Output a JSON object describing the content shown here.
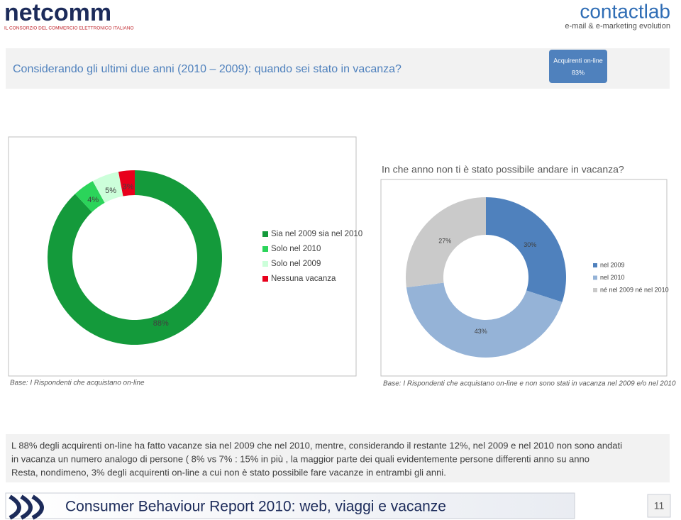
{
  "header": {
    "brand_left": "netcomm",
    "brand_left_sub": "IL CONSORZIO DEL COMMERCIO ELETTRONICO ITALIANO",
    "brand_right": "contactlab",
    "brand_right_sub": "e-mail & e-marketing evolution"
  },
  "question": "Considerando gli ultimi due anni (2010 – 2009): quando sei stato in vacanza?",
  "badge": {
    "label": "Acquirenti on-line",
    "value": "83%"
  },
  "chart_data": [
    {
      "type": "pie",
      "categories": [
        "Sia nel 2009 sia nel 2010",
        "Solo nel 2010",
        "Solo nel 2009",
        "Nessuna vacanza"
      ],
      "values": [
        88,
        4,
        5,
        3
      ],
      "value_labels": [
        "88%",
        "4%",
        "5%",
        "3%"
      ],
      "colors": [
        "#149a3b",
        "#2bd45a",
        "#ccffda",
        "#e8001c"
      ],
      "legend": "right",
      "note": "Base: I Rispondenti che acquistano on-line"
    },
    {
      "type": "pie",
      "title": "In che anno non ti è stato possibile andare in vacanza?",
      "categories": [
        "nel 2009",
        "nel 2010",
        "né nel 2009 né nel 2010"
      ],
      "values": [
        30,
        43,
        27
      ],
      "value_labels": [
        "30%",
        "43%",
        "27%"
      ],
      "colors": [
        "#4f81bd",
        "#95b3d7",
        "#cacaca"
      ],
      "legend": "right",
      "note": "Base: I Rispondenti che acquistano on-line e  non sono stati in vacanza nel 2009 e/o nel 2010"
    }
  ],
  "summary": [
    "L 88% degli acquirenti on-line ha fatto vacanze sia nel 2009 che nel 2010, mentre, considerando il restante 12%, nel 2009 e nel 2010 non sono andati",
    "in vacanza un numero analogo di persone ( 8% vs 7% : 15% in più , la maggior parte dei quali evidentemente persone differenti anno su anno",
    "Resta, nondimeno, 3% degli acquirenti on-line a cui non è stato possibile fare vacanze in entrambi gli anni."
  ],
  "footer": {
    "title": "Consumer Behaviour Report 2010: web, viaggi e vacanze",
    "page": "11"
  }
}
